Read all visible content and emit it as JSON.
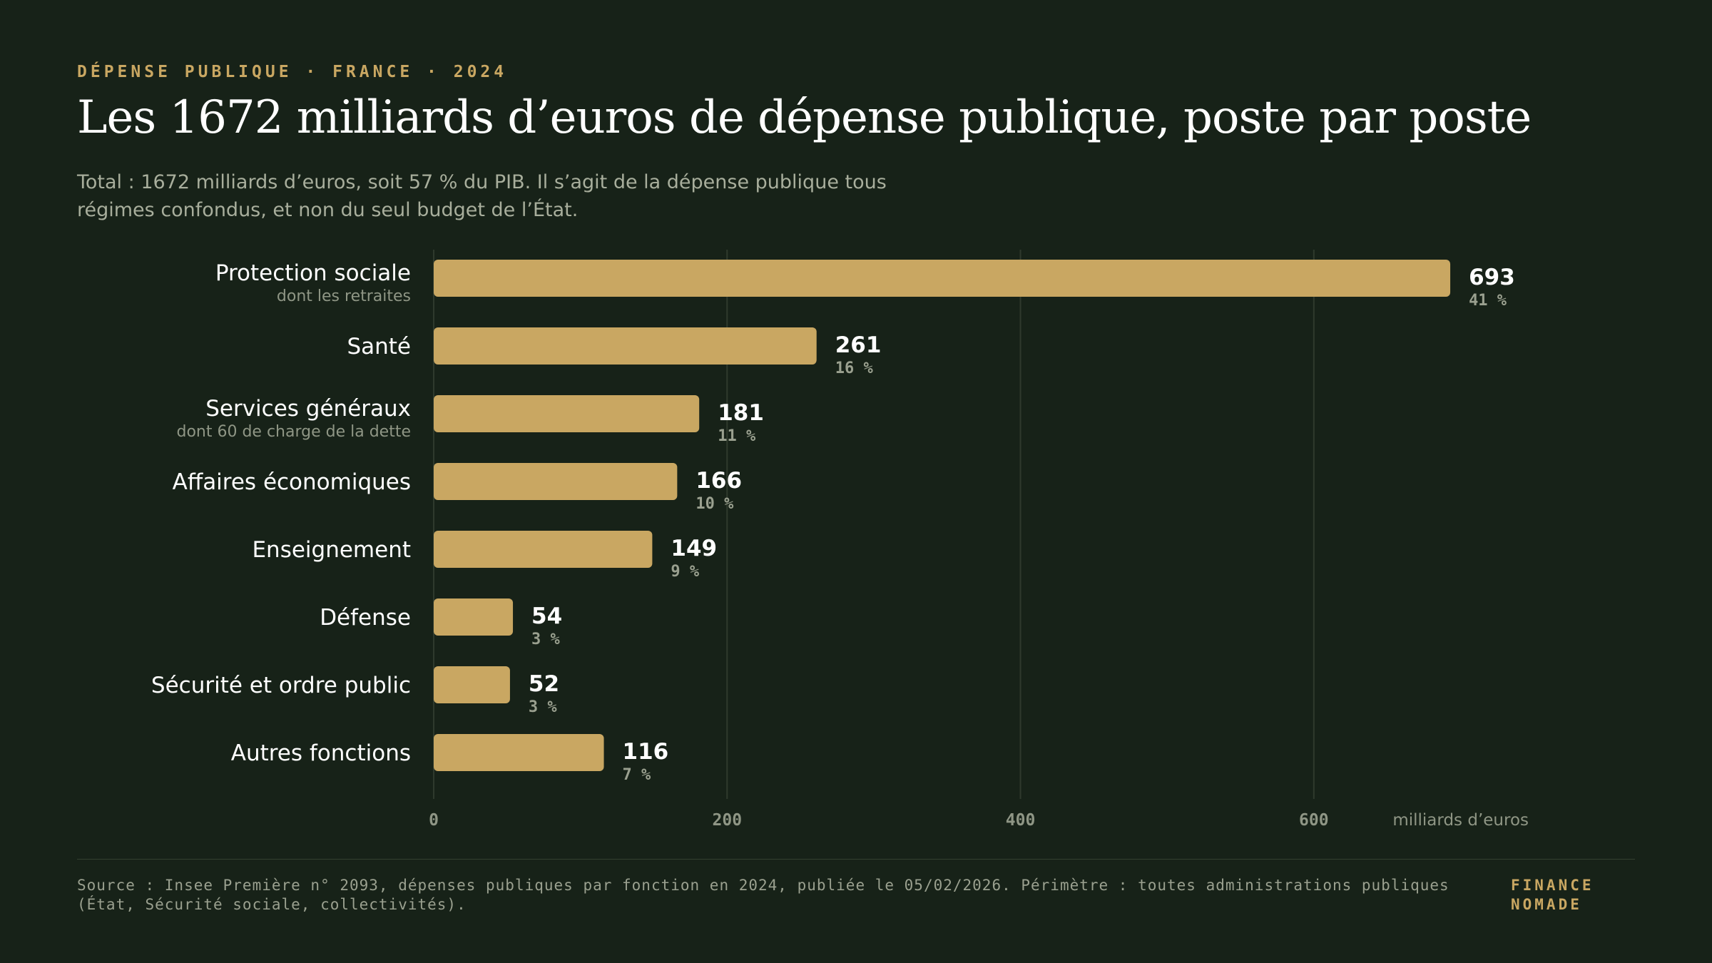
{
  "header": {
    "kicker": "DÉPENSE PUBLIQUE · FRANCE · 2024",
    "title": "Les 1672 milliards d’euros de dépense publique, poste par poste",
    "subtitle": "Total : 1672 milliards d’euros, soit 57 % du PIB. Il s’agit de la dépense publique tous régimes confondus, et non du seul budget de l’État."
  },
  "chart_data": {
    "type": "bar",
    "orientation": "horizontal",
    "categories": [
      "Protection sociale",
      "Santé",
      "Services généraux",
      "Affaires économiques",
      "Enseignement",
      "Défense",
      "Sécurité et ordre public",
      "Autres fonctions"
    ],
    "sublabels": [
      "dont les retraites",
      "",
      "dont 60 de charge de la dette",
      "",
      "",
      "",
      "",
      ""
    ],
    "values": [
      693,
      261,
      181,
      166,
      149,
      54,
      52,
      116
    ],
    "shares": [
      "41 %",
      "16 %",
      "11 %",
      "10 %",
      "9 %",
      "3 %",
      "3 %",
      "7 %"
    ],
    "xticks": [
      0,
      200,
      400,
      600
    ],
    "xlim": [
      0,
      745
    ],
    "xlabel": "milliards d’euros",
    "grid": true,
    "colors": {
      "bar": "#c9a762",
      "grid": "#2f3a2d",
      "tick": "#8f9685",
      "share": "#9aa08f"
    }
  },
  "footer": {
    "source": "Source : Insee Première n° 2093, dépenses publiques par fonction en 2024, publiée le 05/02/2026. Périmètre : toutes administrations publiques (État, Sécurité sociale, collectivités).",
    "brand_line1": "FINANCE",
    "brand_line2": "NOMADE"
  }
}
